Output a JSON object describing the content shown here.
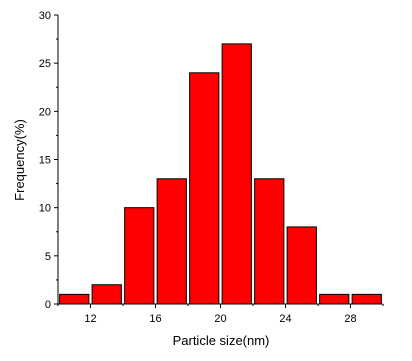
{
  "chart_data": {
    "type": "bar",
    "xlabel": "Particle size(nm)",
    "ylabel": "Frequency(%)",
    "x_ticks": [
      12,
      16,
      20,
      24,
      28
    ],
    "y_ticks": [
      0,
      5,
      10,
      15,
      20,
      25,
      30
    ],
    "xlim": [
      10,
      30
    ],
    "ylim": [
      0,
      30
    ],
    "bar_width": 1.8,
    "x": [
      11,
      13,
      15,
      17,
      19,
      21,
      23,
      25,
      27,
      29
    ],
    "values": [
      1,
      2,
      10,
      13,
      24,
      27,
      13,
      8,
      1,
      1
    ],
    "colors": {
      "bar_fill": "#ff0000",
      "bar_stroke": "#000000",
      "axis": "#000000",
      "background": "#ffffff"
    }
  }
}
